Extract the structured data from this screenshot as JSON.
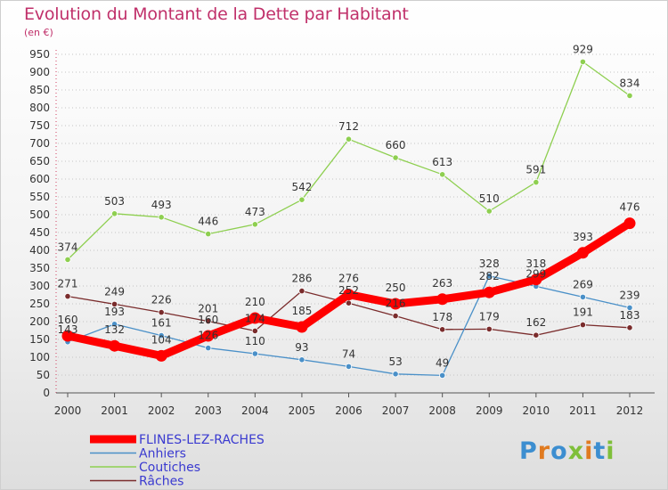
{
  "title": "Evolution du Montant de la Dette par Habitant",
  "unit": "(en €)",
  "logo": "Proxiti",
  "chart_data": {
    "type": "line",
    "x": [
      2000,
      2001,
      2002,
      2003,
      2004,
      2005,
      2006,
      2007,
      2008,
      2009,
      2010,
      2011,
      2012
    ],
    "ylim": [
      0,
      950
    ],
    "yticks": [
      0,
      50,
      100,
      150,
      200,
      250,
      300,
      350,
      400,
      450,
      500,
      550,
      600,
      650,
      700,
      750,
      800,
      850,
      900,
      950
    ],
    "grid": "horizontal dotted",
    "legend": "bottom-left",
    "series": [
      {
        "name": "FLINES-LEZ-RACHES",
        "color": "#ff0000",
        "values": [
          160,
          132,
          104,
          160,
          210,
          185,
          276,
          250,
          263,
          282,
          318,
          393,
          476
        ]
      },
      {
        "name": "Anhiers",
        "color": "#4a90c8",
        "values": [
          143,
          193,
          161,
          126,
          110,
          93,
          74,
          53,
          49,
          328,
          299,
          269,
          239
        ]
      },
      {
        "name": "Coutiches",
        "color": "#8ecf50",
        "values": [
          374,
          503,
          493,
          446,
          473,
          542,
          712,
          660,
          613,
          510,
          591,
          929,
          834
        ]
      },
      {
        "name": "Râches",
        "color": "#7a2c2c",
        "values": [
          271,
          249,
          226,
          201,
          174,
          286,
          252,
          216,
          178,
          179,
          162,
          191,
          183
        ]
      }
    ]
  }
}
